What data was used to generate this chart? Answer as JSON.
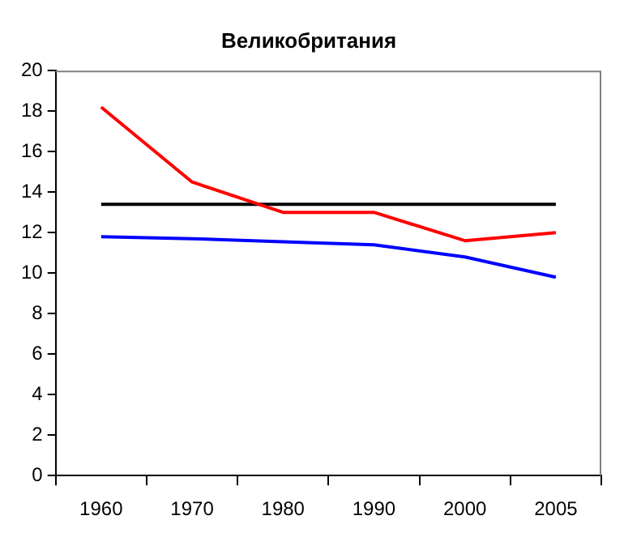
{
  "chart_data": {
    "type": "line",
    "title": "Великобритания",
    "categories": [
      "1960",
      "1970",
      "1980",
      "1990",
      "2000",
      "2005"
    ],
    "series": [
      {
        "color": "#ff0000",
        "values": [
          18.2,
          14.5,
          13.0,
          13.0,
          11.6,
          12.0
        ]
      },
      {
        "color": "#0000ff",
        "values": [
          11.8,
          11.7,
          11.55,
          11.4,
          10.8,
          9.8
        ]
      },
      {
        "color": "#000000",
        "values": [
          13.4,
          13.4,
          13.4,
          13.4,
          13.4,
          13.4
        ]
      }
    ],
    "ylim": [
      0,
      20
    ],
    "yticks": [
      0,
      2,
      4,
      6,
      8,
      10,
      12,
      14,
      16,
      18,
      20
    ],
    "grid": false,
    "legend": false,
    "marker": "none",
    "line_style": "solid"
  }
}
